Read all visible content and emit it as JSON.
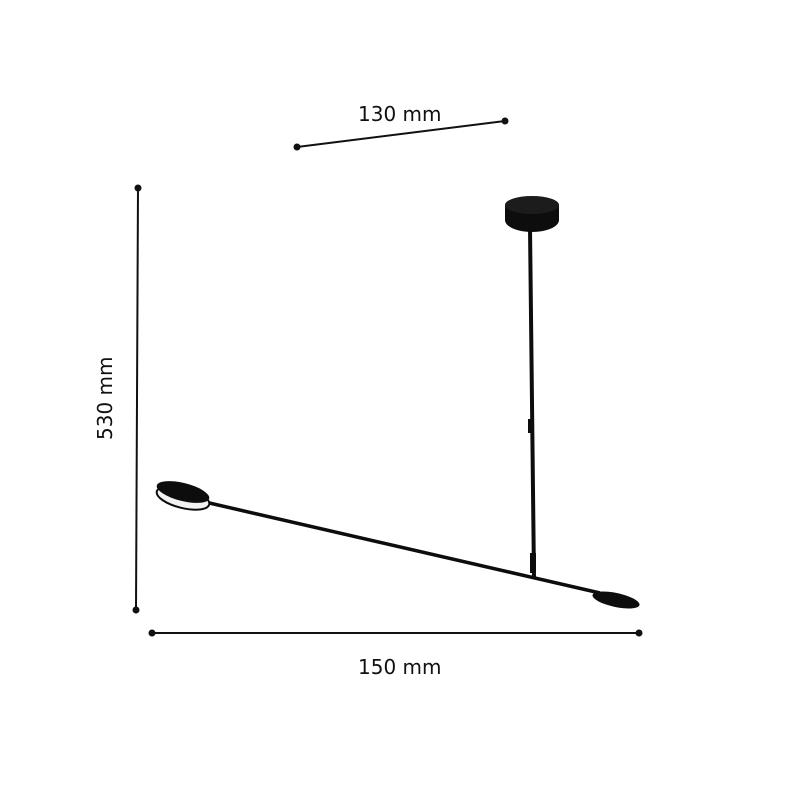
{
  "dimensions": {
    "depth_label": "130 mm",
    "height_label": "530 mm",
    "width_label": "150 mm"
  },
  "colors": {
    "line": "#111111",
    "lamp": "#0d0d0d"
  }
}
